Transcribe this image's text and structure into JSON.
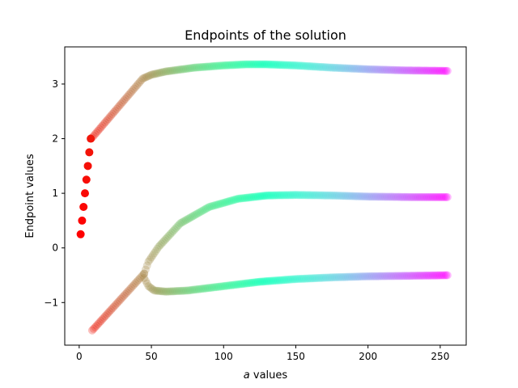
{
  "chart_data": {
    "type": "scatter",
    "title": "Endpoints of the solution",
    "xlabel_italic": "a",
    "xlabel_rest": " values",
    "ylabel": "Endpoint values",
    "xlim": [
      -10,
      268
    ],
    "ylim": [
      -1.78,
      3.68
    ],
    "xticks": [
      {
        "value": 0,
        "label": "0"
      },
      {
        "value": 50,
        "label": "50"
      },
      {
        "value": 100,
        "label": "100"
      },
      {
        "value": 150,
        "label": "150"
      },
      {
        "value": 200,
        "label": "200"
      },
      {
        "value": 250,
        "label": "250"
      }
    ],
    "yticks": [
      {
        "value": -1,
        "label": "−1"
      },
      {
        "value": 0,
        "label": "0"
      },
      {
        "value": 1,
        "label": "1"
      },
      {
        "value": 2,
        "label": "2"
      },
      {
        "value": 3,
        "label": "3"
      }
    ],
    "color_scale": "rainbow",
    "x_range": [
      1,
      255
    ],
    "initial_points": [
      {
        "x": 1,
        "y": 0.25
      },
      {
        "x": 2,
        "y": 0.5
      },
      {
        "x": 3,
        "y": 0.75
      },
      {
        "x": 4,
        "y": 1.0
      },
      {
        "x": 5,
        "y": 1.25
      },
      {
        "x": 6,
        "y": 1.5
      },
      {
        "x": 7,
        "y": 1.75
      },
      {
        "x": 8,
        "y": 2.0
      }
    ],
    "upper_branch_keypoints": [
      {
        "x": 9,
        "y": 2.02
      },
      {
        "x": 44,
        "y": 3.1
      },
      {
        "x": 50,
        "y": 3.17
      },
      {
        "x": 60,
        "y": 3.23
      },
      {
        "x": 80,
        "y": 3.3
      },
      {
        "x": 100,
        "y": 3.34
      },
      {
        "x": 115,
        "y": 3.36
      },
      {
        "x": 130,
        "y": 3.36
      },
      {
        "x": 150,
        "y": 3.34
      },
      {
        "x": 175,
        "y": 3.3
      },
      {
        "x": 200,
        "y": 3.27
      },
      {
        "x": 225,
        "y": 3.25
      },
      {
        "x": 255,
        "y": 3.24
      }
    ],
    "lower_left_branch_keypoints": [
      {
        "x": 9,
        "y": -1.51
      },
      {
        "x": 45,
        "y": -0.47
      }
    ],
    "middle_branch_keypoints": [
      {
        "x": 45,
        "y": -0.47
      },
      {
        "x": 48,
        "y": -0.25
      },
      {
        "x": 55,
        "y": 0.02
      },
      {
        "x": 70,
        "y": 0.45
      },
      {
        "x": 90,
        "y": 0.75
      },
      {
        "x": 110,
        "y": 0.9
      },
      {
        "x": 130,
        "y": 0.96
      },
      {
        "x": 150,
        "y": 0.97
      },
      {
        "x": 175,
        "y": 0.96
      },
      {
        "x": 200,
        "y": 0.94
      },
      {
        "x": 230,
        "y": 0.93
      },
      {
        "x": 255,
        "y": 0.93
      }
    ],
    "bottom_branch_keypoints": [
      {
        "x": 45,
        "y": -0.55
      },
      {
        "x": 48,
        "y": -0.7
      },
      {
        "x": 52,
        "y": -0.78
      },
      {
        "x": 60,
        "y": -0.8
      },
      {
        "x": 75,
        "y": -0.78
      },
      {
        "x": 100,
        "y": -0.7
      },
      {
        "x": 125,
        "y": -0.62
      },
      {
        "x": 150,
        "y": -0.57
      },
      {
        "x": 175,
        "y": -0.54
      },
      {
        "x": 200,
        "y": -0.52
      },
      {
        "x": 230,
        "y": -0.51
      },
      {
        "x": 255,
        "y": -0.5
      }
    ]
  }
}
